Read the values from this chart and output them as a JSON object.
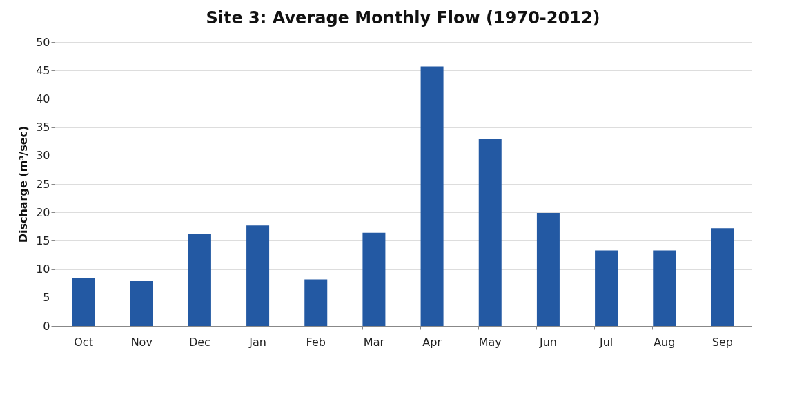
{
  "chart_data": {
    "type": "bar",
    "title": "Site 3: Average Monthly Flow (1970-2012)",
    "ylabel": "Discharge (m³/sec)",
    "categories": [
      "Oct",
      "Nov",
      "Dec",
      "Jan",
      "Feb",
      "Mar",
      "Apr",
      "May",
      "Jun",
      "Jul",
      "Aug",
      "Sep"
    ],
    "values": [
      8.5,
      7.9,
      16.2,
      17.7,
      8.2,
      16.4,
      45.7,
      32.9,
      19.9,
      13.3,
      13.3,
      17.2
    ],
    "color": "#2359a3",
    "ylim": [
      0,
      50
    ],
    "yticks": [
      0,
      5,
      10,
      15,
      20,
      25,
      30,
      35,
      40,
      45,
      50
    ],
    "grid": "y"
  }
}
